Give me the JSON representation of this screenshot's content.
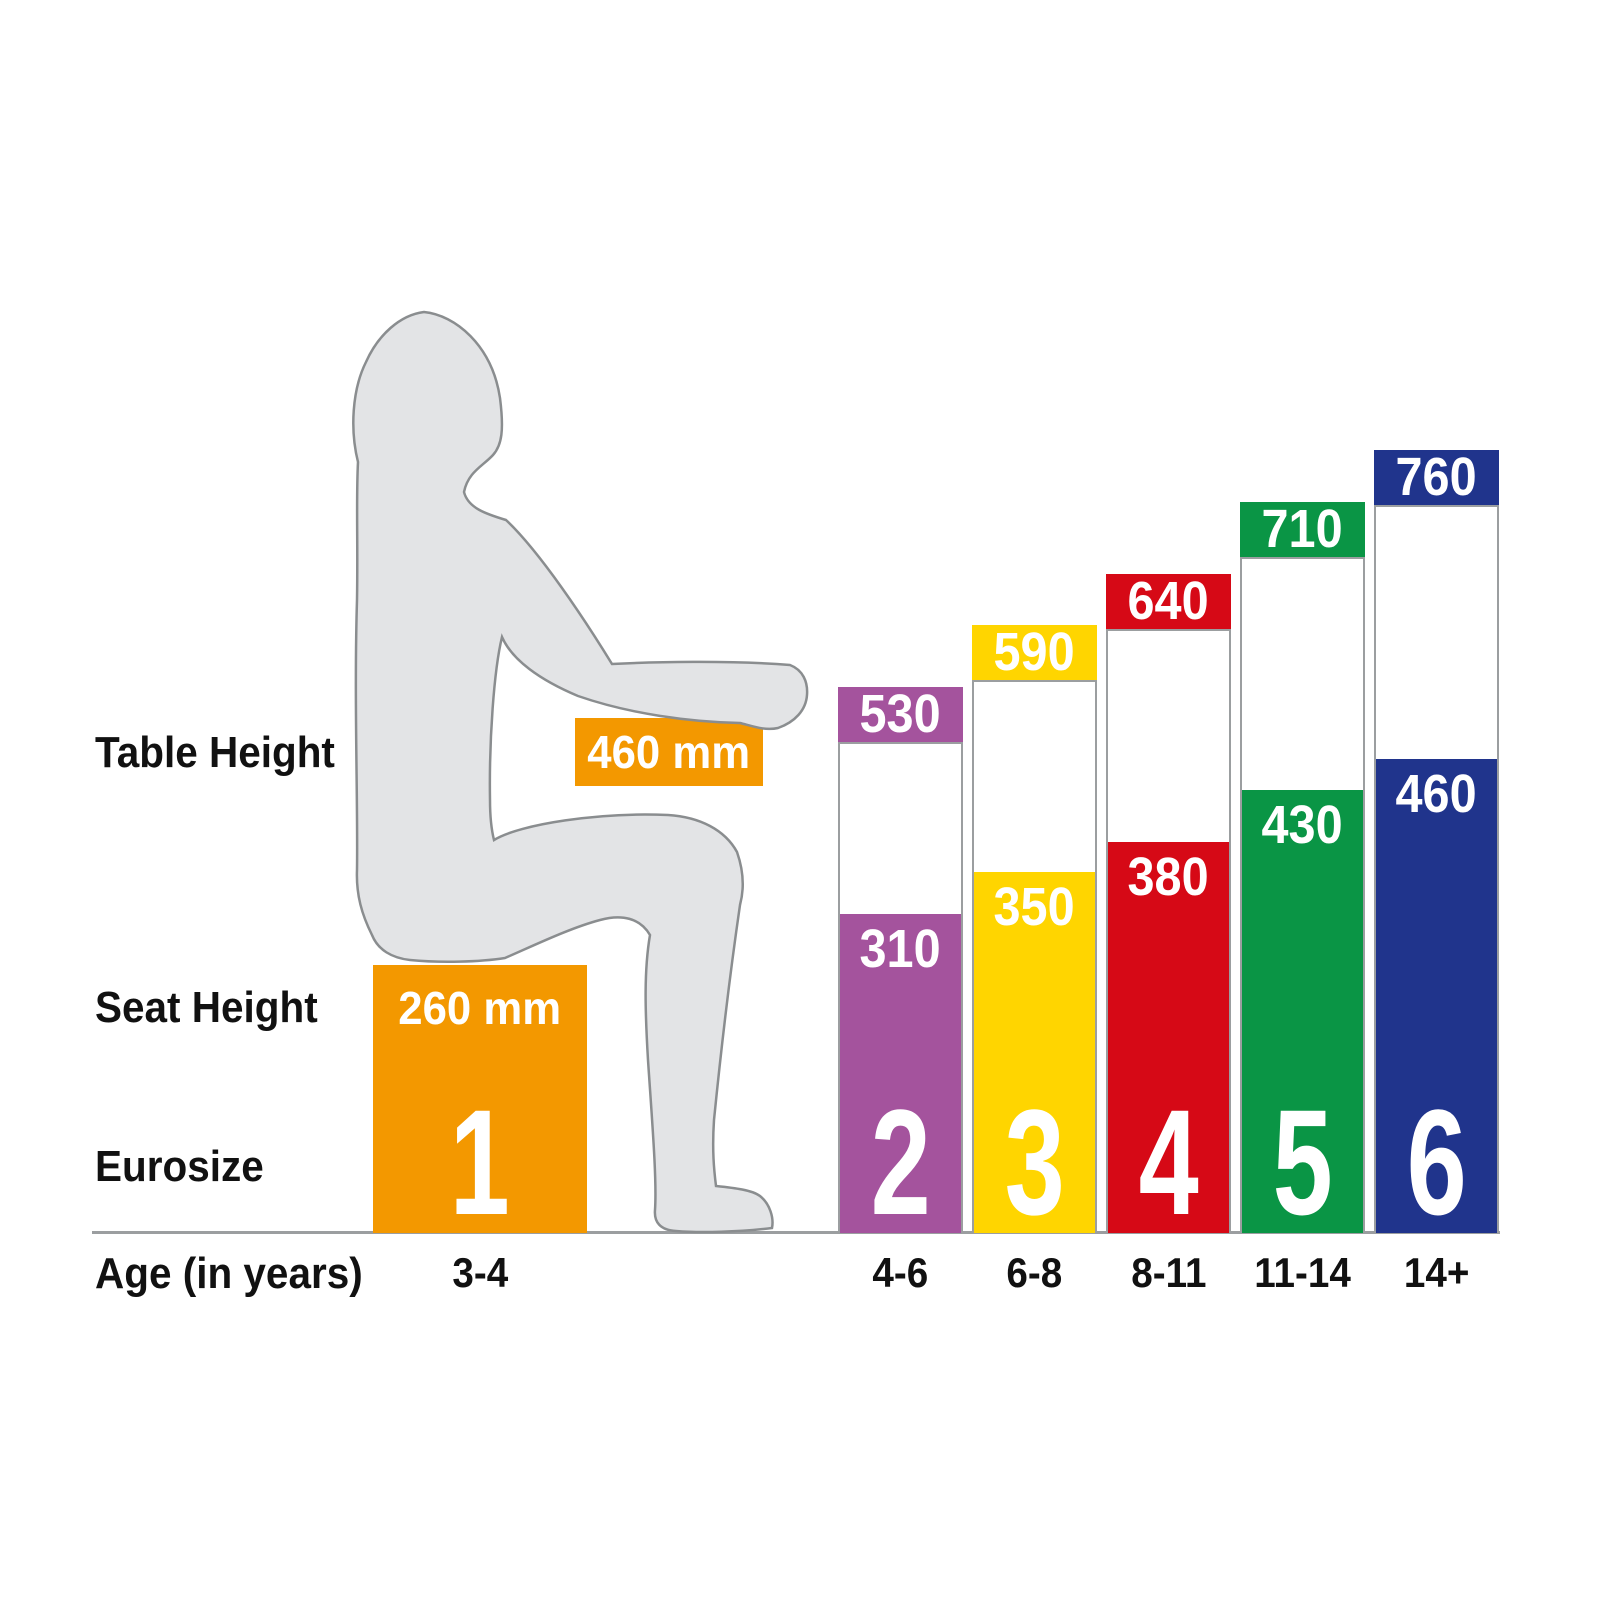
{
  "labels": {
    "table_height": "Table Height",
    "seat_height": "Seat Height",
    "eurosize": "Eurosize",
    "age": "Age (in years)"
  },
  "unit": "mm",
  "chart_data": {
    "type": "bar",
    "xlabel": "Age (in years)",
    "series": [
      {
        "name": "Table Height",
        "values": [
          460,
          530,
          590,
          640,
          710,
          760
        ]
      },
      {
        "name": "Seat Height",
        "values": [
          260,
          310,
          350,
          380,
          430,
          460
        ]
      }
    ],
    "categories_eurosize": [
      "1",
      "2",
      "3",
      "4",
      "5",
      "6"
    ],
    "categories_age": [
      "3-4",
      "4-6",
      "6-8",
      "8-11",
      "11-14",
      "14+"
    ],
    "unit": "mm",
    "value_labels_shown": true,
    "grid": false,
    "legend": false,
    "colors": [
      "#F39800",
      "#A4539D",
      "#FFD500",
      "#D60916",
      "#0A9545",
      "#20348C"
    ]
  },
  "figure": {
    "description": "seated-child-silhouette",
    "fill": "#E3E4E6",
    "outline": "#8A8D8F"
  },
  "axis": {
    "baseline_color": "#9B9EA0"
  }
}
